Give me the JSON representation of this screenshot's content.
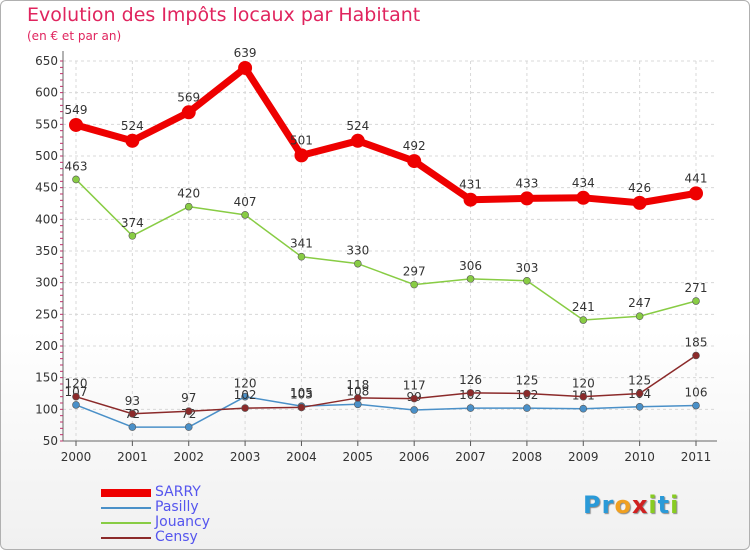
{
  "chart_data": {
    "type": "line",
    "title": "Evolution des Impôts locaux par Habitant",
    "subtitle": "(en € et par an)",
    "x": [
      "2000",
      "2001",
      "2002",
      "2003",
      "2004",
      "2005",
      "2006",
      "2007",
      "2008",
      "2009",
      "2010",
      "2011"
    ],
    "ylim": [
      50,
      650
    ],
    "yticks": [
      50,
      100,
      150,
      200,
      250,
      300,
      350,
      400,
      450,
      500,
      550,
      600,
      650
    ],
    "grid": true,
    "legend_position": "bottom-left",
    "series": [
      {
        "name": "SARRY",
        "color": "#ee0000",
        "values": [
          549,
          524,
          569,
          639,
          501,
          524,
          492,
          431,
          433,
          434,
          426,
          441
        ],
        "labels": [
          "549",
          "524",
          "569",
          "639",
          "501",
          "524",
          "492",
          "431",
          "433",
          "434",
          "426",
          "441"
        ]
      },
      {
        "name": "Pasilly",
        "color": "#4a90c8",
        "values": [
          107,
          72,
          72,
          120,
          105,
          108,
          99,
          102,
          102,
          101,
          104,
          106
        ],
        "labels": [
          "107",
          "72",
          "72",
          "120",
          "105",
          "108",
          "99",
          "102",
          "102",
          "101",
          "104",
          "106"
        ]
      },
      {
        "name": "Jouancy",
        "color": "#88cc44",
        "values": [
          463,
          374,
          420,
          407,
          341,
          330,
          297,
          306,
          303,
          241,
          247,
          271
        ],
        "labels": [
          "463",
          "374",
          "420",
          "407",
          "341",
          "330",
          "297",
          "306",
          "303",
          "241",
          "247",
          "271"
        ]
      },
      {
        "name": "Censy",
        "color": "#8b2a2a",
        "values": [
          120,
          93,
          97,
          102,
          103,
          118,
          117,
          126,
          125,
          120,
          125,
          185
        ],
        "labels": [
          "120",
          "93",
          "97",
          "102",
          "103",
          "118",
          "117",
          "126",
          "125",
          "120",
          "125",
          "185"
        ]
      }
    ]
  },
  "logo": {
    "letters": [
      "P",
      "r",
      "o",
      "x",
      "i",
      "t",
      "i"
    ],
    "colors": [
      "#2a9ad8",
      "#2a9ad8",
      "#f0a020",
      "#d02020",
      "#88cc22",
      "#2a9ad8",
      "#88cc22"
    ]
  }
}
